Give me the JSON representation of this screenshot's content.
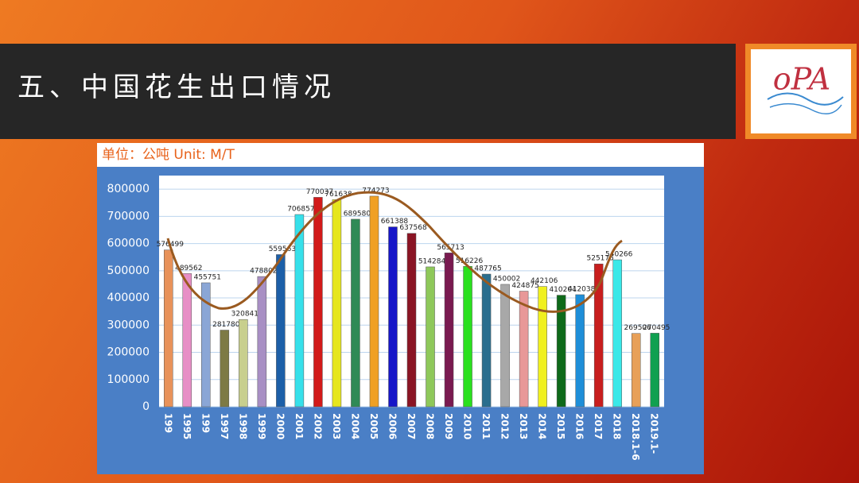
{
  "header": {
    "title": "五、中国花生出口情况"
  },
  "logo": {
    "text": "oPA"
  },
  "chart_data": {
    "type": "bar",
    "subtitle": "单位：公吨 Unit: M/T",
    "categories": [
      "199",
      "1995",
      "199",
      "1997",
      "1998",
      "1999",
      "2000",
      "2001",
      "2002",
      "2003",
      "2004",
      "2005",
      "2006",
      "2007",
      "2008",
      "2009",
      "2010",
      "2011",
      "2012",
      "2013",
      "2014",
      "2015",
      "2016",
      "2017",
      "2018",
      "2018.1-6",
      "2019.1-"
    ],
    "values": [
      576499,
      489562,
      455751,
      281780,
      320841,
      478802,
      559563,
      706857,
      770037,
      761638,
      689580,
      774273,
      661388,
      637568,
      514284,
      565713,
      516226,
      487765,
      450002,
      424875,
      442106,
      410204,
      412038,
      525175,
      540266,
      269506,
      270495
    ],
    "colors": [
      "#e8925a",
      "#e78fc6",
      "#8aa6d6",
      "#7d7a45",
      "#c8cf8e",
      "#a88fc4",
      "#1c5fa8",
      "#36e0ea",
      "#d21a1a",
      "#e6e61e",
      "#2f8a56",
      "#f0a024",
      "#1616c8",
      "#8a1424",
      "#8ec85a",
      "#7a1a50",
      "#2ae01e",
      "#2a6e8e",
      "#a8a8a8",
      "#e89898",
      "#f0f01e",
      "#0e6a1a",
      "#1e8ed8",
      "#c81e1e",
      "#3ae8e8",
      "#e8a058",
      "#10a050"
    ],
    "ylim": [
      0,
      850000
    ],
    "yticks": [
      0,
      100000,
      200000,
      300000,
      400000,
      500000,
      600000,
      700000,
      800000
    ],
    "grid": true
  }
}
